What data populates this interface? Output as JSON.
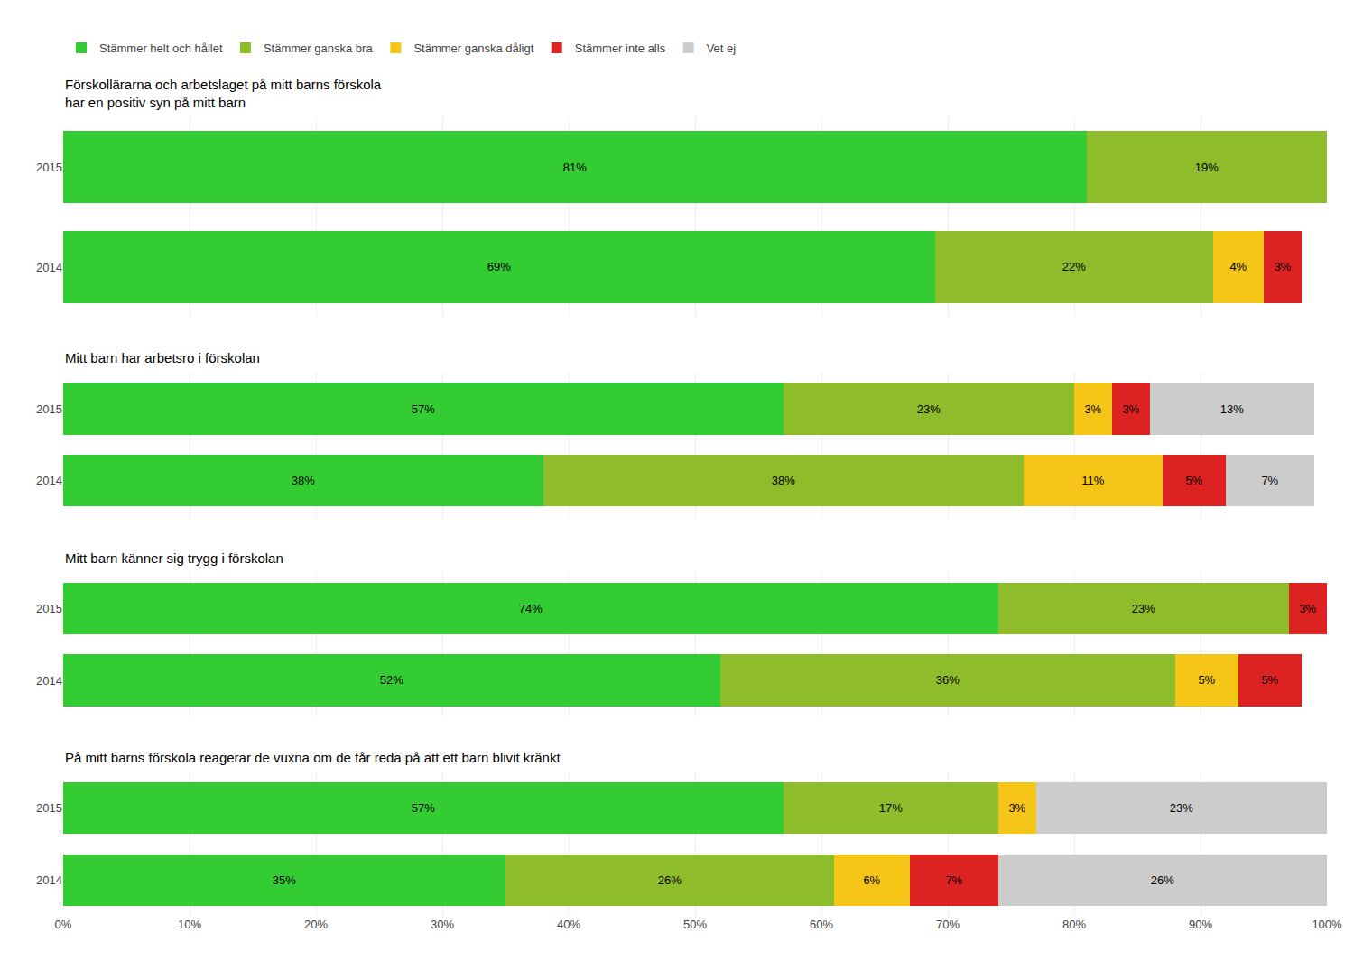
{
  "chart_data": [
    {
      "type": "bar",
      "orientation": "horizontal",
      "stacked": true,
      "data_labels": true,
      "grid": true,
      "legend": "top",
      "tick_labels": "y",
      "title": "Förskollärarna och arbetslaget på mitt barns förskola\nhar en positiv syn på mitt barn",
      "categories": [
        "2015",
        "2014"
      ],
      "xlim": [
        0,
        100
      ],
      "xticks": [
        {
          "value": 0,
          "label": "0%"
        },
        {
          "value": 10,
          "label": "10%"
        },
        {
          "value": 20,
          "label": "20%"
        },
        {
          "value": 30,
          "label": "30%"
        },
        {
          "value": 40,
          "label": "40%"
        },
        {
          "value": 50,
          "label": "50%"
        },
        {
          "value": 60,
          "label": "60%"
        },
        {
          "value": 70,
          "label": "70%"
        },
        {
          "value": 80,
          "label": "80%"
        },
        {
          "value": 90,
          "label": "90%"
        },
        {
          "value": 100,
          "label": "100%"
        }
      ],
      "series": [
        {
          "name": "Stämmer helt och hållet",
          "color": "#33cc33",
          "values": [
            81,
            69
          ],
          "value_labels": [
            "81%",
            "69%"
          ]
        },
        {
          "name": "Stämmer ganska bra",
          "color": "#8fbc2b",
          "values": [
            19,
            22
          ],
          "value_labels": [
            "19%",
            "22%"
          ]
        },
        {
          "name": "Stämmer ganska dåligt",
          "color": "#f5c518",
          "values": [
            0,
            4
          ],
          "value_labels": [
            null,
            "4%"
          ]
        },
        {
          "name": "Stämmer inte alls",
          "color": "#dd2222",
          "values": [
            0,
            3
          ],
          "value_labels": [
            null,
            "3%"
          ]
        },
        {
          "name": "Vet ej",
          "color": "#cccccc",
          "values": [
            0,
            0
          ],
          "value_labels": [
            null,
            null
          ]
        }
      ]
    },
    {
      "type": "bar",
      "orientation": "horizontal",
      "stacked": true,
      "data_labels": true,
      "grid": true,
      "tick_labels": "y",
      "title": "Mitt barn har arbetsro i förskolan",
      "categories": [
        "2015",
        "2014"
      ],
      "xlim": [
        0,
        100
      ],
      "xticks": [
        {
          "value": 0,
          "label": "0%"
        },
        {
          "value": 10,
          "label": "10%"
        },
        {
          "value": 20,
          "label": "20%"
        },
        {
          "value": 30,
          "label": "30%"
        },
        {
          "value": 40,
          "label": "40%"
        },
        {
          "value": 50,
          "label": "50%"
        },
        {
          "value": 60,
          "label": "60%"
        },
        {
          "value": 70,
          "label": "70%"
        },
        {
          "value": 80,
          "label": "80%"
        },
        {
          "value": 90,
          "label": "90%"
        },
        {
          "value": 100,
          "label": "100%"
        }
      ],
      "series": [
        {
          "name": "Stämmer helt och hållet",
          "color": "#33cc33",
          "values": [
            57,
            38
          ],
          "value_labels": [
            "57%",
            "38%"
          ]
        },
        {
          "name": "Stämmer ganska bra",
          "color": "#8fbc2b",
          "values": [
            23,
            38
          ],
          "value_labels": [
            "23%",
            "38%"
          ]
        },
        {
          "name": "Stämmer ganska dåligt",
          "color": "#f5c518",
          "values": [
            3,
            11
          ],
          "value_labels": [
            "3%",
            "11%"
          ]
        },
        {
          "name": "Stämmer inte alls",
          "color": "#dd2222",
          "values": [
            3,
            5
          ],
          "value_labels": [
            "3%",
            "5%"
          ]
        },
        {
          "name": "Vet ej",
          "color": "#cccccc",
          "values": [
            13,
            7
          ],
          "value_labels": [
            "13%",
            "7%"
          ]
        }
      ]
    },
    {
      "type": "bar",
      "orientation": "horizontal",
      "stacked": true,
      "data_labels": true,
      "grid": true,
      "tick_labels": "y",
      "title": "Mitt barn känner sig trygg i förskolan",
      "categories": [
        "2015",
        "2014"
      ],
      "xlim": [
        0,
        100
      ],
      "xticks": [
        {
          "value": 0,
          "label": "0%"
        },
        {
          "value": 10,
          "label": "10%"
        },
        {
          "value": 20,
          "label": "20%"
        },
        {
          "value": 30,
          "label": "30%"
        },
        {
          "value": 40,
          "label": "40%"
        },
        {
          "value": 50,
          "label": "50%"
        },
        {
          "value": 60,
          "label": "60%"
        },
        {
          "value": 70,
          "label": "70%"
        },
        {
          "value": 80,
          "label": "80%"
        },
        {
          "value": 90,
          "label": "90%"
        },
        {
          "value": 100,
          "label": "100%"
        }
      ],
      "series": [
        {
          "name": "Stämmer helt och hållet",
          "color": "#33cc33",
          "values": [
            74,
            52
          ],
          "value_labels": [
            "74%",
            "52%"
          ]
        },
        {
          "name": "Stämmer ganska bra",
          "color": "#8fbc2b",
          "values": [
            23,
            36
          ],
          "value_labels": [
            "23%",
            "36%"
          ]
        },
        {
          "name": "Stämmer ganska dåligt",
          "color": "#f5c518",
          "values": [
            0,
            5
          ],
          "value_labels": [
            null,
            "5%"
          ]
        },
        {
          "name": "Stämmer inte alls",
          "color": "#dd2222",
          "values": [
            3,
            5
          ],
          "value_labels": [
            "3%",
            "5%"
          ]
        },
        {
          "name": "Vet ej",
          "color": "#cccccc",
          "values": [
            0,
            0
          ],
          "value_labels": [
            null,
            null
          ]
        }
      ]
    },
    {
      "type": "bar",
      "orientation": "horizontal",
      "stacked": true,
      "data_labels": true,
      "grid": true,
      "title": "På mitt barns förskola reagerar de vuxna om de får reda på att ett barn blivit kränkt",
      "categories": [
        "2015",
        "2014"
      ],
      "xlim": [
        0,
        100
      ],
      "xticks": [
        {
          "value": 0,
          "label": "0%"
        },
        {
          "value": 10,
          "label": "10%"
        },
        {
          "value": 20,
          "label": "20%"
        },
        {
          "value": 30,
          "label": "30%"
        },
        {
          "value": 40,
          "label": "40%"
        },
        {
          "value": 50,
          "label": "50%"
        },
        {
          "value": 60,
          "label": "60%"
        },
        {
          "value": 70,
          "label": "70%"
        },
        {
          "value": 80,
          "label": "80%"
        },
        {
          "value": 90,
          "label": "90%"
        },
        {
          "value": 100,
          "label": "100%"
        }
      ],
      "series": [
        {
          "name": "Stämmer helt och hållet",
          "color": "#33cc33",
          "values": [
            57,
            35
          ],
          "value_labels": [
            "57%",
            "35%"
          ]
        },
        {
          "name": "Stämmer ganska bra",
          "color": "#8fbc2b",
          "values": [
            17,
            26
          ],
          "value_labels": [
            "17%",
            "26%"
          ]
        },
        {
          "name": "Stämmer ganska dåligt",
          "color": "#f5c518",
          "values": [
            3,
            6
          ],
          "value_labels": [
            "3%",
            "6%"
          ]
        },
        {
          "name": "Stämmer inte alls",
          "color": "#dd2222",
          "values": [
            0,
            7
          ],
          "value_labels": [
            null,
            "7%"
          ]
        },
        {
          "name": "Vet ej",
          "color": "#cccccc",
          "values": [
            23,
            26
          ],
          "value_labels": [
            "23%",
            "26%"
          ]
        }
      ]
    }
  ]
}
